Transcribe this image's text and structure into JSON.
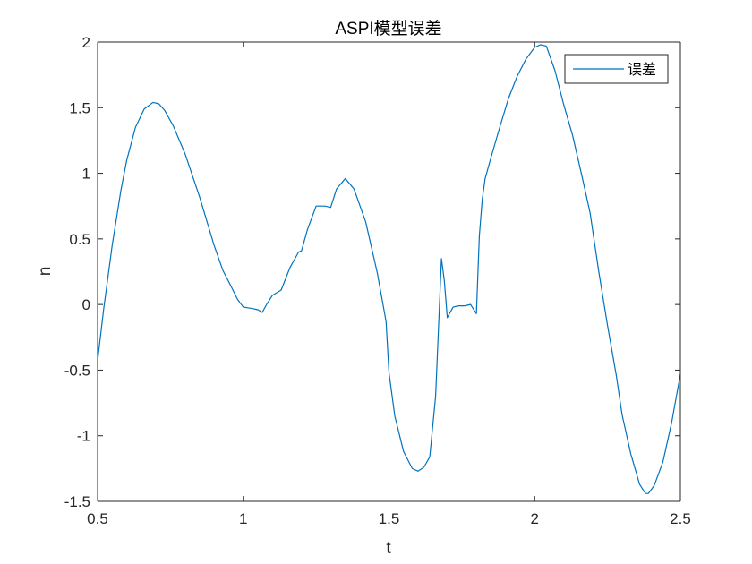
{
  "chart_data": {
    "type": "line",
    "title": "ASPI模型误差",
    "xlabel": "t",
    "ylabel": "n",
    "xlim": [
      0.5,
      2.5
    ],
    "ylim": [
      -1.5,
      2
    ],
    "xticks": [
      0.5,
      1,
      1.5,
      2,
      2.5
    ],
    "xtick_labels": [
      "0.5",
      "1",
      "1.5",
      "2",
      "2.5"
    ],
    "yticks": [
      -1.5,
      -1,
      -0.5,
      0,
      0.5,
      1,
      1.5,
      2
    ],
    "ytick_labels": [
      "-1.5",
      "-1",
      "-0.5",
      "0",
      "0.5",
      "1",
      "1.5",
      "2"
    ],
    "grid": false,
    "legend_position": "top-right",
    "series": [
      {
        "name": "误差",
        "color": "#0072BD",
        "x": [
          0.5,
          0.52,
          0.55,
          0.58,
          0.6,
          0.63,
          0.66,
          0.69,
          0.71,
          0.73,
          0.76,
          0.8,
          0.85,
          0.9,
          0.93,
          0.96,
          0.98,
          1.0,
          1.03,
          1.05,
          1.065,
          1.08,
          1.1,
          1.13,
          1.16,
          1.19,
          1.2,
          1.22,
          1.25,
          1.28,
          1.3,
          1.32,
          1.35,
          1.38,
          1.42,
          1.46,
          1.49,
          1.5,
          1.52,
          1.55,
          1.58,
          1.6,
          1.62,
          1.64,
          1.66,
          1.68,
          1.69,
          1.7,
          1.72,
          1.74,
          1.76,
          1.78,
          1.8,
          1.81,
          1.82,
          1.83,
          1.85,
          1.88,
          1.91,
          1.94,
          1.97,
          2.0,
          2.02,
          2.04,
          2.07,
          2.1,
          2.13,
          2.16,
          2.19,
          2.22,
          2.25,
          2.28,
          2.3,
          2.33,
          2.36,
          2.38,
          2.39,
          2.41,
          2.44,
          2.47,
          2.5
        ],
        "y": [
          -0.43,
          -0.05,
          0.45,
          0.87,
          1.1,
          1.35,
          1.49,
          1.54,
          1.53,
          1.48,
          1.36,
          1.15,
          0.82,
          0.45,
          0.26,
          0.13,
          0.04,
          -0.02,
          -0.03,
          -0.04,
          -0.06,
          0.0,
          0.07,
          0.11,
          0.28,
          0.4,
          0.41,
          0.57,
          0.75,
          0.75,
          0.74,
          0.88,
          0.96,
          0.88,
          0.63,
          0.24,
          -0.13,
          -0.52,
          -0.85,
          -1.12,
          -1.25,
          -1.27,
          -1.24,
          -1.16,
          -0.7,
          0.35,
          0.18,
          -0.1,
          -0.02,
          -0.01,
          -0.01,
          0.0,
          -0.07,
          0.52,
          0.8,
          0.96,
          1.12,
          1.35,
          1.57,
          1.74,
          1.87,
          1.96,
          1.98,
          1.97,
          1.78,
          1.52,
          1.29,
          1.0,
          0.7,
          0.25,
          -0.16,
          -0.54,
          -0.84,
          -1.14,
          -1.37,
          -1.44,
          -1.44,
          -1.38,
          -1.2,
          -0.9,
          -0.53
        ]
      }
    ]
  }
}
